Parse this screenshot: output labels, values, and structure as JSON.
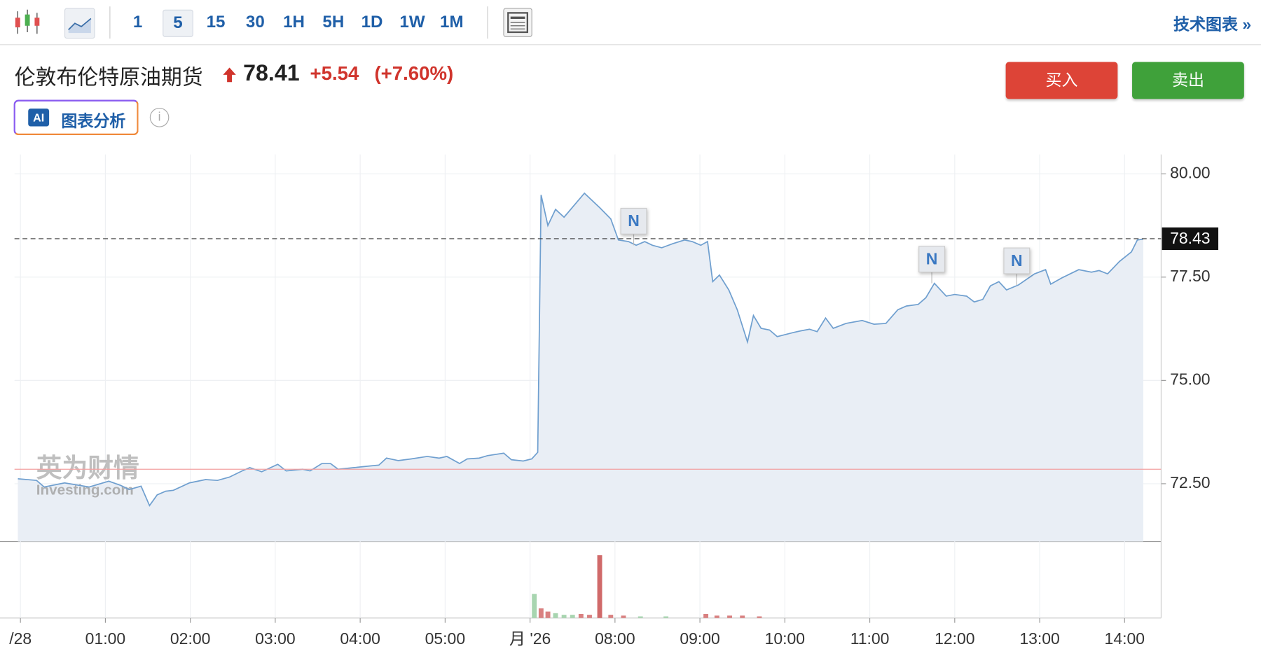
{
  "toolbar": {
    "intervals": [
      "1",
      "5",
      "15",
      "30",
      "1H",
      "5H",
      "1D",
      "1W",
      "1M"
    ],
    "active_interval": "5",
    "technical_chart_link": "技术图表 »"
  },
  "header": {
    "instrument": "伦敦布伦特原油期货",
    "price": "78.41",
    "change": "+5.54",
    "change_percent": "(+7.60%)",
    "buy_button": "买入",
    "sell_button": "卖出",
    "ai_badge": "AI",
    "ai_button": "图表分析",
    "info_icon": "i"
  },
  "watermark": {
    "brand_cn": "英为财情",
    "brand_en": "Investing.com"
  },
  "chart_data": {
    "type": "area",
    "xlim": [
      -0.07,
      13.43
    ],
    "xticks": [
      {
        "value": 0,
        "label": "/28"
      },
      {
        "value": 1,
        "label": "01:00"
      },
      {
        "value": 2,
        "label": "02:00"
      },
      {
        "value": 3,
        "label": "03:00"
      },
      {
        "value": 4,
        "label": "04:00"
      },
      {
        "value": 5,
        "label": "05:00"
      },
      {
        "value": 6,
        "label": "月 '26"
      },
      {
        "value": 7,
        "label": "08:00"
      },
      {
        "value": 8,
        "label": "09:00"
      },
      {
        "value": 9,
        "label": "10:00"
      },
      {
        "value": 10,
        "label": "11:00"
      },
      {
        "value": 11,
        "label": "12:00"
      },
      {
        "value": 12,
        "label": "13:00"
      },
      {
        "value": 13,
        "label": "14:00"
      }
    ],
    "ylim": [
      71.1,
      80.37
    ],
    "yticks": [
      {
        "value": 72.5,
        "label": "72.50"
      },
      {
        "value": 75,
        "label": "75.00"
      },
      {
        "value": 77.5,
        "label": "77.50"
      },
      {
        "value": 80,
        "label": "80.00"
      }
    ],
    "grid": true,
    "current_price": 78.43,
    "previous_close": 72.85,
    "series": [
      {
        "color": "#6f9fcf",
        "fill": "#e9eef5",
        "x": [
          -0.03,
          0.19,
          0.28,
          0.52,
          0.81,
          1.04,
          1.18,
          1.28,
          1.42,
          1.52,
          1.61,
          1.71,
          1.8,
          1.99,
          2.18,
          2.32,
          2.46,
          2.61,
          2.7,
          2.84,
          3.03,
          3.13,
          3.32,
          3.41,
          3.55,
          3.65,
          3.74,
          3.93,
          4.12,
          4.22,
          4.31,
          4.45,
          4.6,
          4.79,
          4.93,
          5.02,
          5.17,
          5.26,
          5.4,
          5.5,
          5.69,
          5.78,
          5.92,
          6.02,
          6.09,
          6.13,
          6.21,
          6.3,
          6.4,
          6.64,
          6.82,
          6.95,
          7.04,
          7.16,
          7.25,
          7.35,
          7.44,
          7.55,
          7.68,
          7.82,
          7.91,
          8.01,
          8.09,
          8.15,
          8.23,
          8.34,
          8.44,
          8.56,
          8.63,
          8.72,
          8.82,
          8.91,
          9.1,
          9.19,
          9.29,
          9.38,
          9.48,
          9.57,
          9.72,
          9.91,
          10.05,
          10.19,
          10.33,
          10.43,
          10.57,
          10.66,
          10.76,
          10.9,
          11.0,
          11.14,
          11.23,
          11.33,
          11.42,
          11.52,
          11.61,
          11.75,
          11.94,
          12.07,
          12.13,
          12.27,
          12.46,
          12.61,
          12.7,
          12.8,
          12.94,
          13.08,
          13.15,
          13.22
        ],
        "values": [
          72.62,
          72.58,
          72.42,
          72.52,
          72.42,
          72.56,
          72.46,
          72.36,
          72.44,
          71.97,
          72.23,
          72.32,
          72.34,
          72.52,
          72.6,
          72.58,
          72.66,
          72.81,
          72.89,
          72.79,
          72.97,
          72.81,
          72.85,
          72.81,
          72.99,
          72.99,
          72.85,
          72.89,
          72.93,
          72.95,
          73.12,
          73.06,
          73.1,
          73.16,
          73.12,
          73.16,
          72.99,
          73.1,
          73.12,
          73.18,
          73.24,
          73.08,
          73.05,
          73.1,
          73.26,
          79.49,
          78.75,
          79.14,
          78.95,
          79.53,
          79.18,
          78.91,
          78.4,
          78.36,
          78.27,
          78.36,
          78.27,
          78.21,
          78.31,
          78.4,
          78.36,
          78.27,
          78.36,
          77.39,
          77.55,
          77.19,
          76.71,
          75.93,
          76.57,
          76.26,
          76.22,
          76.06,
          76.16,
          76.2,
          76.24,
          76.18,
          76.51,
          76.26,
          76.38,
          76.45,
          76.36,
          76.38,
          76.71,
          76.8,
          76.84,
          77.0,
          77.35,
          77.04,
          77.08,
          77.04,
          76.9,
          76.96,
          77.29,
          77.39,
          77.19,
          77.31,
          77.58,
          77.68,
          77.33,
          77.49,
          77.68,
          77.62,
          77.66,
          77.58,
          77.88,
          78.11,
          78.4,
          78.42
        ]
      }
    ],
    "annotations": [
      {
        "label": "N",
        "x": 7.22
      },
      {
        "label": "N",
        "x": 10.73
      },
      {
        "label": "N",
        "x": 11.73
      }
    ],
    "volume": {
      "vlim": [
        0,
        80
      ],
      "x": [
        6.05,
        6.13,
        6.21,
        6.3,
        6.4,
        6.5,
        6.6,
        6.7,
        6.82,
        6.95,
        7.1,
        7.3,
        7.6,
        8.07,
        8.2,
        8.35,
        8.5,
        8.7
      ],
      "values": [
        30,
        12,
        8,
        6,
        4,
        4,
        5,
        4,
        78,
        4,
        3,
        2,
        2,
        5,
        3,
        3,
        3,
        2
      ],
      "colors": [
        "#a8d5b0",
        "#d98080",
        "#d98080",
        "#a8d5b0",
        "#a8d5b0",
        "#a8d5b0",
        "#d98080",
        "#d98080",
        "#d06a6a",
        "#d98080",
        "#d98080",
        "#a8d5b0",
        "#a8d5b0",
        "#d98080",
        "#d98080",
        "#d98080",
        "#d98080",
        "#d98080"
      ]
    }
  }
}
